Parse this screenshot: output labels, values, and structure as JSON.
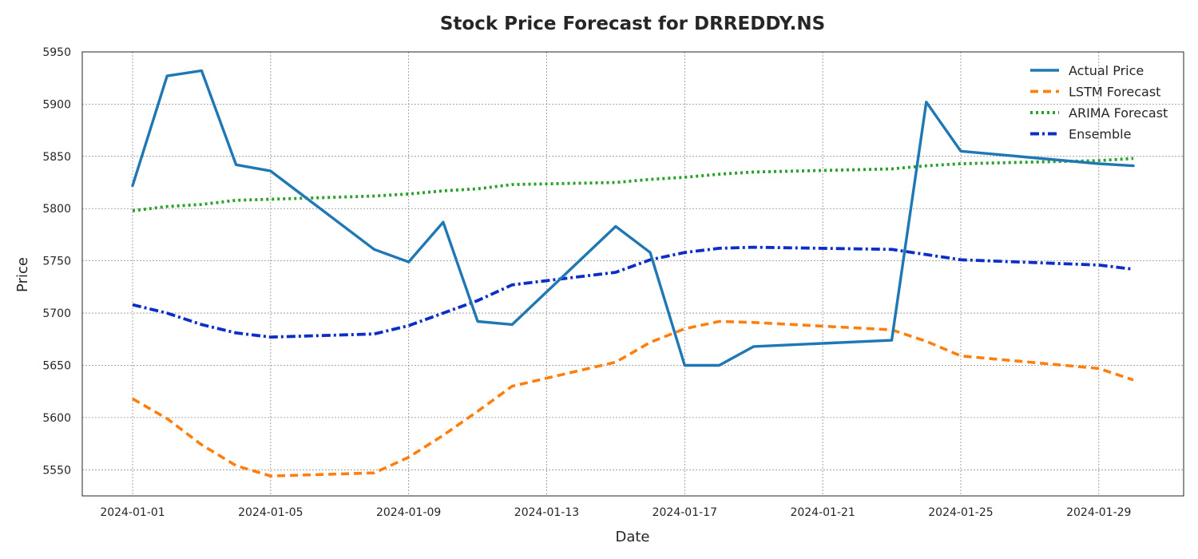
{
  "chart_data": {
    "type": "line",
    "title": "Stock Price Forecast for DRREDDY.NS",
    "xlabel": "Date",
    "ylabel": "Price",
    "x": [
      "2024-01-01",
      "2024-01-02",
      "2024-01-03",
      "2024-01-04",
      "2024-01-05",
      "2024-01-08",
      "2024-01-09",
      "2024-01-10",
      "2024-01-11",
      "2024-01-12",
      "2024-01-15",
      "2024-01-16",
      "2024-01-17",
      "2024-01-18",
      "2024-01-19",
      "2024-01-23",
      "2024-01-24",
      "2024-01-25",
      "2024-01-29",
      "2024-01-30"
    ],
    "xlim": [
      "2023-12-30T13:00",
      "2024-01-31T11:00"
    ],
    "ylim": [
      5525,
      5950
    ],
    "x_ticks": [
      "2024-01-01",
      "2024-01-05",
      "2024-01-09",
      "2024-01-13",
      "2024-01-17",
      "2024-01-21",
      "2024-01-25",
      "2024-01-29"
    ],
    "y_ticks": [
      5550,
      5600,
      5650,
      5700,
      5750,
      5800,
      5850,
      5900,
      5950
    ],
    "grid": true,
    "legend_position": "top-right",
    "series": [
      {
        "name": "Actual Price",
        "color": "#1f77b4",
        "style": "solid",
        "values": [
          5822,
          5927,
          5932,
          5842,
          5836,
          5761,
          5749,
          5787,
          5692,
          5689,
          5783,
          5758,
          5650,
          5650,
          5668,
          5674,
          5902,
          5855,
          5843,
          5841
        ]
      },
      {
        "name": "LSTM Forecast",
        "color": "#ff7f0e",
        "style": "dashed",
        "values": [
          5618,
          5599,
          5574,
          5554,
          5544,
          5547,
          5562,
          5583,
          5606,
          5630,
          5653,
          5672,
          5685,
          5692,
          5691,
          5684,
          5673,
          5659,
          5647,
          5636
        ]
      },
      {
        "name": "ARIMA Forecast",
        "color": "#2ca02c",
        "style": "dotted",
        "values": [
          5798,
          5802,
          5804,
          5808,
          5809,
          5812,
          5814,
          5817,
          5819,
          5823,
          5825,
          5828,
          5830,
          5833,
          5835,
          5838,
          5841,
          5843,
          5846,
          5848
        ]
      },
      {
        "name": "Ensemble",
        "color": "#0b2ec9",
        "style": "dashdot",
        "values": [
          5708,
          5700,
          5689,
          5681,
          5677,
          5680,
          5688,
          5700,
          5712,
          5727,
          5739,
          5751,
          5758,
          5762,
          5763,
          5761,
          5756,
          5751,
          5746,
          5742
        ]
      }
    ]
  }
}
